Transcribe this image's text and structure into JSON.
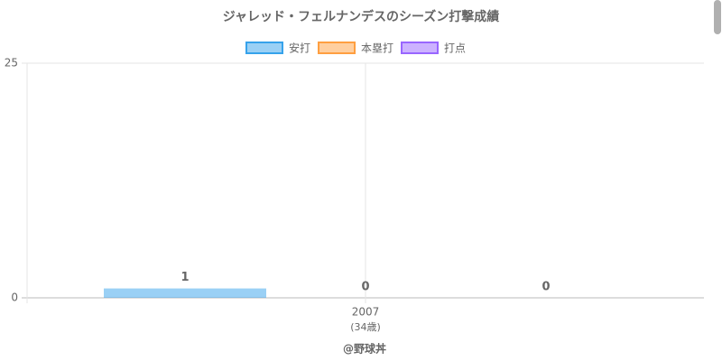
{
  "chart_data": {
    "type": "bar",
    "title": "ジャレッド・フェルナンデスのシーズン打撃成績",
    "categories": [
      "2007"
    ],
    "category_sublabels": [
      "(34歳)"
    ],
    "series": [
      {
        "name": "安打",
        "color": "#36a2eb",
        "values": [
          1
        ]
      },
      {
        "name": "本塁打",
        "color": "#ff9f40",
        "values": [
          0
        ]
      },
      {
        "name": "打点",
        "color": "#9966ff",
        "values": [
          0
        ]
      }
    ],
    "ylim": [
      0,
      25
    ],
    "yticks": [
      0,
      25
    ],
    "grid": true,
    "legend": "top",
    "footer": "@野球丼"
  }
}
